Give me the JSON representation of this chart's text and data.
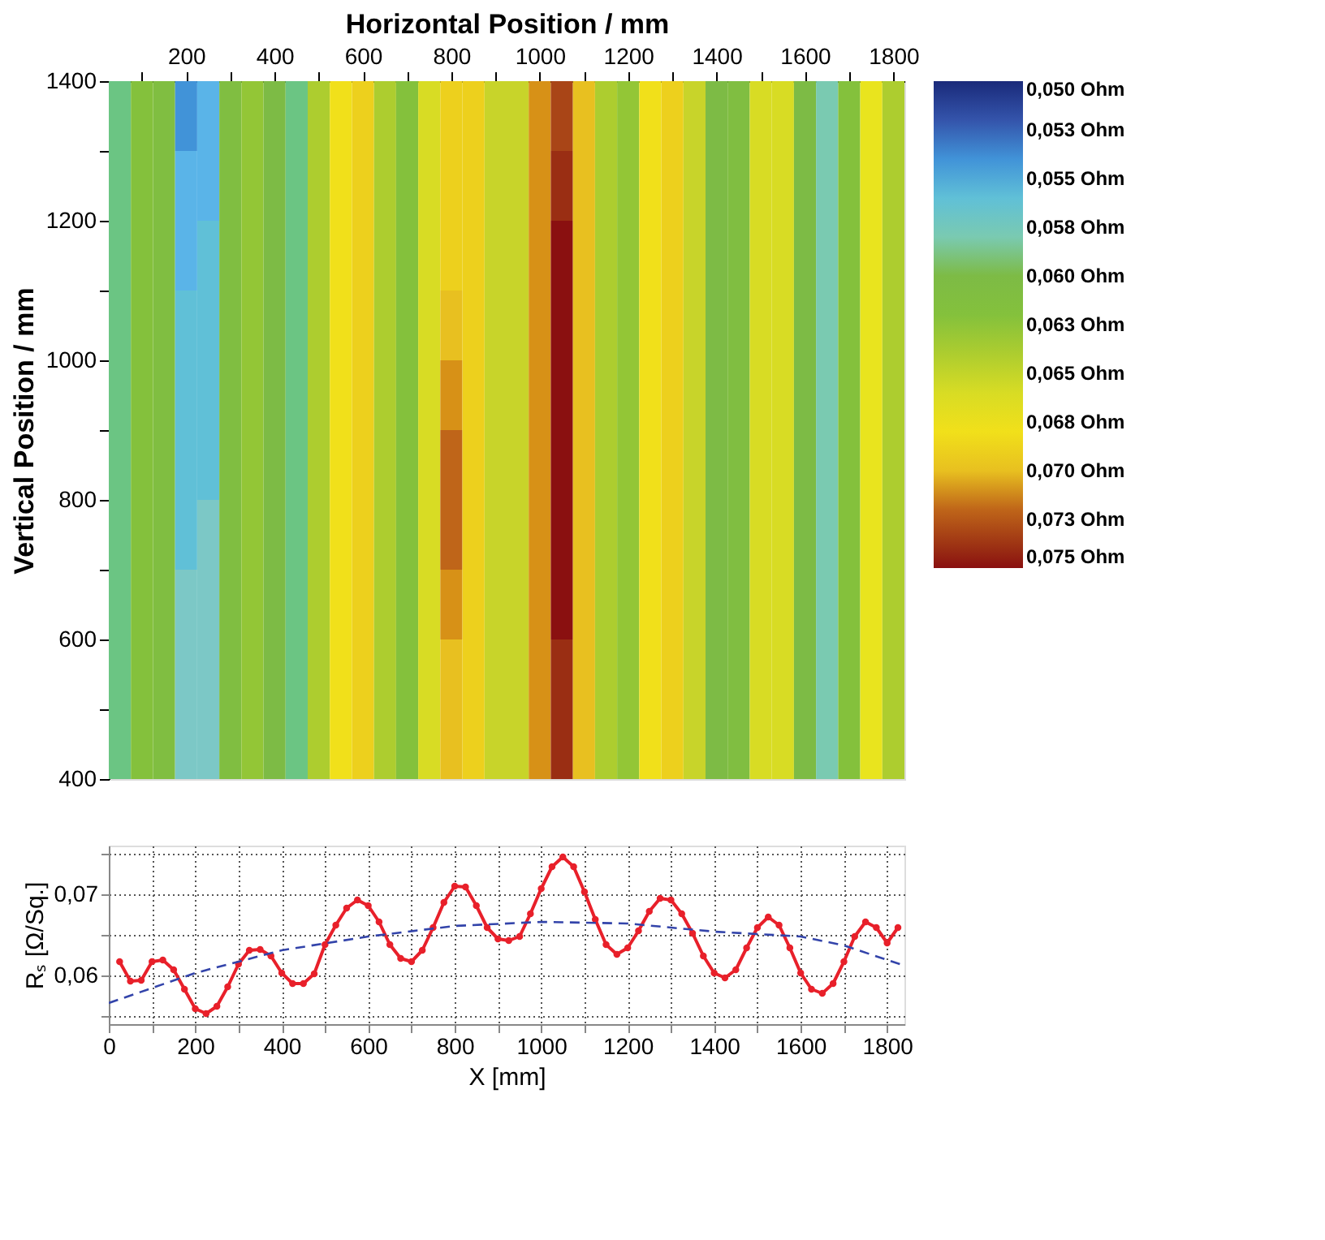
{
  "chart_data": [
    {
      "type": "heatmap",
      "xlabel": "Horizontal Position / mm",
      "ylabel": "Vertical Position / mm",
      "x": [
        50,
        100,
        150,
        200,
        250,
        300,
        350,
        400,
        450,
        500,
        550,
        600,
        650,
        700,
        750,
        800,
        850,
        900,
        950,
        1000,
        1050,
        1100,
        1150,
        1200,
        1250,
        1300,
        1350,
        1400,
        1450,
        1500,
        1550,
        1600,
        1650,
        1700,
        1750,
        1800
      ],
      "y": [
        1350,
        1250,
        1150,
        1050,
        950,
        850,
        750,
        650,
        550,
        450
      ],
      "cells": [
        [
          0.059,
          0.062,
          0.061,
          0.054,
          0.055,
          0.061,
          0.063,
          0.06,
          0.059,
          0.064,
          0.068,
          0.069,
          0.064,
          0.062,
          0.066,
          0.069,
          0.069,
          0.065,
          0.065,
          0.071,
          0.073,
          0.07,
          0.064,
          0.063,
          0.068,
          0.069,
          0.065,
          0.06,
          0.061,
          0.066,
          0.066,
          0.06,
          0.058,
          0.062,
          0.067,
          0.064
        ],
        [
          0.059,
          0.062,
          0.061,
          0.055,
          0.055,
          0.061,
          0.063,
          0.06,
          0.059,
          0.064,
          0.068,
          0.069,
          0.064,
          0.062,
          0.066,
          0.069,
          0.069,
          0.065,
          0.065,
          0.071,
          0.074,
          0.07,
          0.064,
          0.063,
          0.068,
          0.069,
          0.065,
          0.06,
          0.061,
          0.066,
          0.066,
          0.06,
          0.058,
          0.062,
          0.067,
          0.064
        ],
        [
          0.059,
          0.062,
          0.061,
          0.055,
          0.056,
          0.061,
          0.063,
          0.06,
          0.059,
          0.064,
          0.068,
          0.069,
          0.064,
          0.062,
          0.066,
          0.069,
          0.069,
          0.065,
          0.065,
          0.071,
          0.075,
          0.07,
          0.064,
          0.063,
          0.068,
          0.069,
          0.065,
          0.06,
          0.061,
          0.066,
          0.066,
          0.06,
          0.058,
          0.062,
          0.067,
          0.064
        ],
        [
          0.059,
          0.062,
          0.061,
          0.056,
          0.056,
          0.061,
          0.063,
          0.06,
          0.059,
          0.064,
          0.068,
          0.069,
          0.064,
          0.062,
          0.066,
          0.07,
          0.069,
          0.065,
          0.065,
          0.071,
          0.075,
          0.07,
          0.064,
          0.063,
          0.068,
          0.069,
          0.065,
          0.06,
          0.061,
          0.066,
          0.066,
          0.06,
          0.058,
          0.062,
          0.067,
          0.064
        ],
        [
          0.059,
          0.062,
          0.061,
          0.056,
          0.056,
          0.061,
          0.063,
          0.06,
          0.059,
          0.064,
          0.068,
          0.069,
          0.064,
          0.062,
          0.066,
          0.071,
          0.069,
          0.065,
          0.065,
          0.071,
          0.075,
          0.07,
          0.064,
          0.063,
          0.068,
          0.069,
          0.065,
          0.06,
          0.061,
          0.066,
          0.066,
          0.06,
          0.058,
          0.062,
          0.067,
          0.064
        ],
        [
          0.059,
          0.062,
          0.061,
          0.056,
          0.056,
          0.061,
          0.063,
          0.06,
          0.059,
          0.064,
          0.068,
          0.069,
          0.064,
          0.062,
          0.066,
          0.072,
          0.069,
          0.065,
          0.065,
          0.071,
          0.075,
          0.07,
          0.064,
          0.063,
          0.068,
          0.069,
          0.065,
          0.06,
          0.061,
          0.066,
          0.066,
          0.06,
          0.058,
          0.062,
          0.067,
          0.064
        ],
        [
          0.059,
          0.062,
          0.061,
          0.056,
          0.057,
          0.061,
          0.063,
          0.06,
          0.059,
          0.064,
          0.068,
          0.069,
          0.064,
          0.062,
          0.066,
          0.072,
          0.069,
          0.065,
          0.065,
          0.071,
          0.075,
          0.07,
          0.064,
          0.063,
          0.068,
          0.069,
          0.065,
          0.06,
          0.061,
          0.066,
          0.066,
          0.06,
          0.058,
          0.062,
          0.067,
          0.064
        ],
        [
          0.059,
          0.062,
          0.061,
          0.057,
          0.057,
          0.061,
          0.063,
          0.06,
          0.059,
          0.064,
          0.068,
          0.069,
          0.064,
          0.062,
          0.066,
          0.071,
          0.069,
          0.065,
          0.065,
          0.071,
          0.075,
          0.07,
          0.064,
          0.063,
          0.068,
          0.069,
          0.065,
          0.06,
          0.061,
          0.066,
          0.066,
          0.06,
          0.058,
          0.062,
          0.067,
          0.064
        ],
        [
          0.059,
          0.062,
          0.061,
          0.057,
          0.057,
          0.061,
          0.063,
          0.06,
          0.059,
          0.064,
          0.068,
          0.069,
          0.064,
          0.062,
          0.066,
          0.07,
          0.069,
          0.065,
          0.065,
          0.071,
          0.074,
          0.07,
          0.064,
          0.063,
          0.068,
          0.069,
          0.065,
          0.06,
          0.061,
          0.066,
          0.066,
          0.06,
          0.058,
          0.062,
          0.067,
          0.064
        ],
        [
          0.059,
          0.062,
          0.061,
          0.057,
          0.057,
          0.061,
          0.063,
          0.06,
          0.059,
          0.064,
          0.068,
          0.069,
          0.064,
          0.062,
          0.066,
          0.07,
          0.069,
          0.065,
          0.065,
          0.071,
          0.074,
          0.07,
          0.064,
          0.063,
          0.068,
          0.069,
          0.065,
          0.06,
          0.061,
          0.066,
          0.066,
          0.06,
          0.058,
          0.062,
          0.067,
          0.064
        ]
      ],
      "xlim": [
        25,
        1825
      ],
      "ylim": [
        400,
        1400
      ],
      "xticks": [
        {
          "value": 100,
          "label": null
        },
        200,
        {
          "value": 300,
          "label": null
        },
        400,
        {
          "value": 500,
          "label": null
        },
        600,
        {
          "value": 700,
          "label": null
        },
        800,
        {
          "value": 900,
          "label": null
        },
        1000,
        {
          "value": 1100,
          "label": null
        },
        1200,
        {
          "value": 1300,
          "label": null
        },
        1400,
        {
          "value": 1500,
          "label": null
        },
        1600,
        {
          "value": 1700,
          "label": null
        },
        1800
      ],
      "yticks": [
        400,
        {
          "value": 500,
          "label": null
        },
        600,
        {
          "value": 700,
          "label": null
        },
        800,
        {
          "value": 900,
          "label": null
        },
        1000,
        {
          "value": 1100,
          "label": null
        },
        1200,
        {
          "value": 1300,
          "label": null
        },
        1400
      ],
      "clim": [
        0.05,
        0.075
      ],
      "cticks": [
        {
          "value": 0.05,
          "label": "0,050 Ohm"
        },
        {
          "value": 0.0525,
          "label": "0,053 Ohm"
        },
        {
          "value": 0.055,
          "label": "0,055 Ohm"
        },
        {
          "value": 0.0575,
          "label": "0,058 Ohm"
        },
        {
          "value": 0.06,
          "label": "0,060 Ohm"
        },
        {
          "value": 0.0625,
          "label": "0,063 Ohm"
        },
        {
          "value": 0.065,
          "label": "0,065 Ohm"
        },
        {
          "value": 0.0675,
          "label": "0,068 Ohm"
        },
        {
          "value": 0.07,
          "label": "0,070 Ohm"
        },
        {
          "value": 0.0725,
          "label": "0,073 Ohm"
        },
        {
          "value": 0.075,
          "label": "0,075 Ohm"
        }
      ]
    },
    {
      "type": "line",
      "xlabel": "X [mm]",
      "ylabel": "Rₛ [Ω/Sq.]",
      "series": [
        {
          "color": "#e8202a",
          "marker": "circle",
          "x": [
            25,
            50,
            75,
            100,
            125,
            150,
            175,
            200,
            225,
            250,
            275,
            300,
            325,
            350,
            375,
            400,
            425,
            450,
            475,
            500,
            525,
            550,
            575,
            600,
            625,
            650,
            675,
            700,
            725,
            750,
            775,
            800,
            825,
            850,
            875,
            900,
            925,
            950,
            975,
            1000,
            1025,
            1050,
            1075,
            1100,
            1125,
            1150,
            1175,
            1200,
            1225,
            1250,
            1275,
            1300,
            1325,
            1350,
            1375,
            1400,
            1425,
            1450,
            1475,
            1500,
            1525,
            1550,
            1575,
            1600,
            1625,
            1650,
            1675,
            1700,
            1725,
            1750,
            1775,
            1800,
            1825
          ],
          "values": [
            0.0617,
            0.0593,
            0.0594,
            0.0617,
            0.0619,
            0.0607,
            0.0583,
            0.0559,
            0.0553,
            0.0562,
            0.0586,
            0.0614,
            0.0631,
            0.0632,
            0.0624,
            0.0603,
            0.059,
            0.059,
            0.0602,
            0.0638,
            0.0662,
            0.0683,
            0.0693,
            0.0686,
            0.0666,
            0.0638,
            0.0621,
            0.0617,
            0.0631,
            0.0659,
            0.069,
            0.071,
            0.0709,
            0.0686,
            0.0659,
            0.0645,
            0.0643,
            0.0648,
            0.0676,
            0.0707,
            0.0734,
            0.0746,
            0.0734,
            0.0703,
            0.0669,
            0.0638,
            0.0626,
            0.0634,
            0.0655,
            0.0679,
            0.0695,
            0.0693,
            0.0676,
            0.0652,
            0.0624,
            0.0603,
            0.0597,
            0.0607,
            0.0634,
            0.0659,
            0.0672,
            0.0662,
            0.0634,
            0.0603,
            0.0583,
            0.0578,
            0.059,
            0.0617,
            0.0648,
            0.0666,
            0.0659,
            0.064,
            0.0659
          ]
        },
        {
          "color": "#3344aa",
          "marker": "none",
          "line_style": "dashed",
          "x": [
            0,
            200,
            400,
            600,
            800,
            1000,
            1200,
            1400,
            1600,
            1700,
            1840
          ],
          "values": [
            0.0566,
            0.0603,
            0.0631,
            0.0648,
            0.0661,
            0.0666,
            0.0664,
            0.0654,
            0.0648,
            0.0637,
            0.0612
          ]
        }
      ],
      "xlim": [
        0,
        1840
      ],
      "ylim": [
        0.054,
        0.076
      ],
      "xticks": [
        0,
        {
          "value": 100,
          "label": null
        },
        200,
        {
          "value": 300,
          "label": null
        },
        400,
        {
          "value": 500,
          "label": null
        },
        600,
        {
          "value": 700,
          "label": null
        },
        800,
        {
          "value": 900,
          "label": null
        },
        1000,
        {
          "value": 1100,
          "label": null
        },
        1200,
        {
          "value": 1300,
          "label": null
        },
        1400,
        {
          "value": 1500,
          "label": null
        },
        1600,
        {
          "value": 1700,
          "label": null
        },
        1800
      ],
      "yticks": [
        {
          "value": 0.055,
          "label": null
        },
        {
          "value": 0.06,
          "label": "0,06"
        },
        {
          "value": 0.065,
          "label": null
        },
        {
          "value": 0.07,
          "label": "0,07"
        },
        {
          "value": 0.075,
          "label": null
        }
      ],
      "grid": true,
      "legend": false
    }
  ]
}
